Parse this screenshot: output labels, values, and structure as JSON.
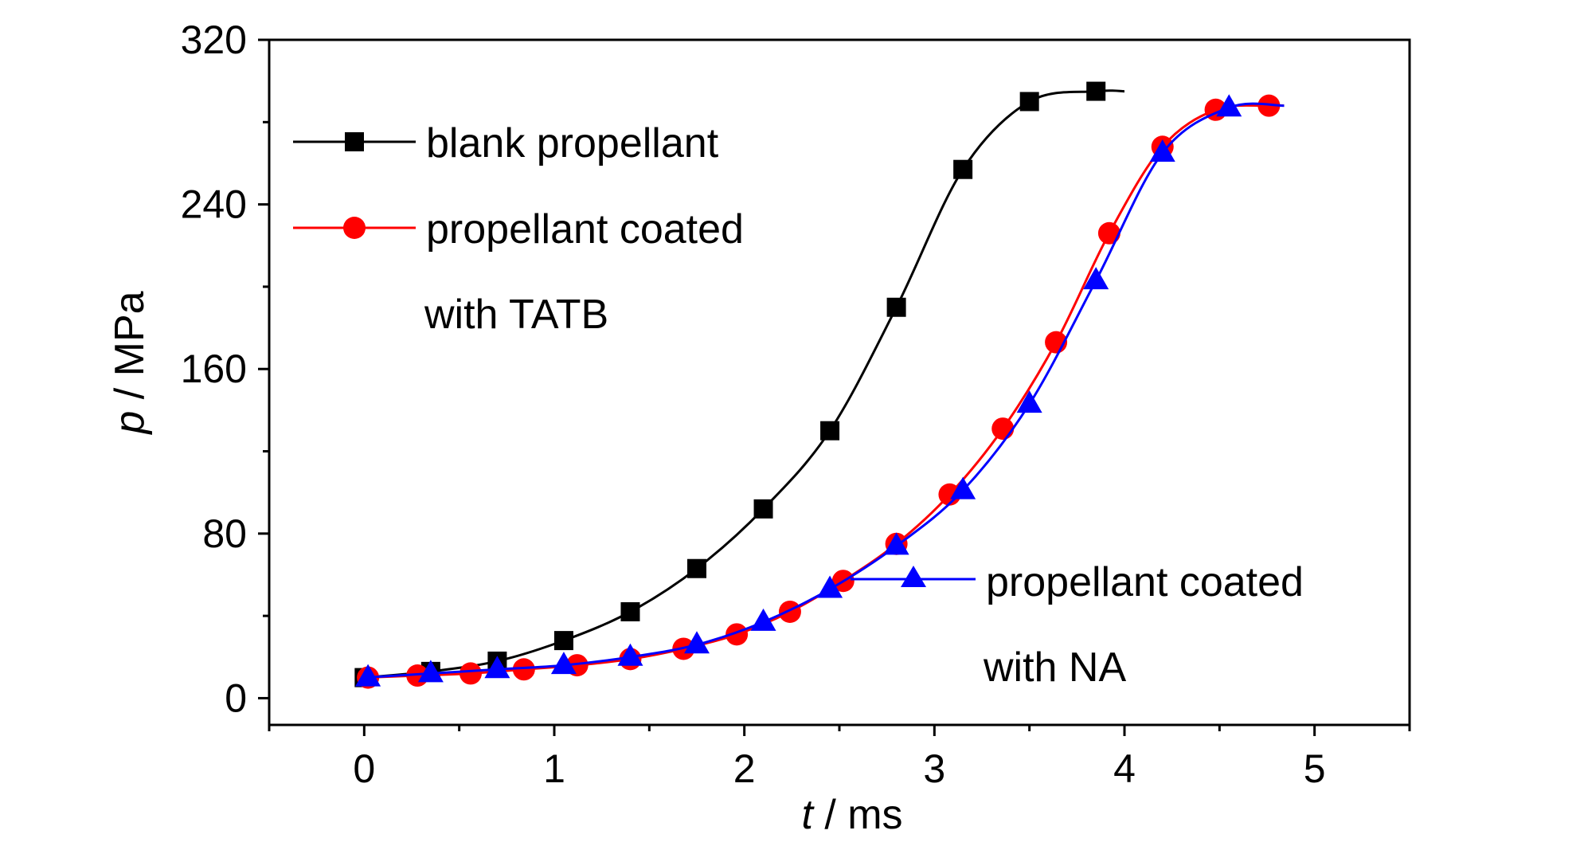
{
  "chart_data": {
    "type": "line",
    "xlabel_var": "t",
    "xlabel_unit": " / ms",
    "ylabel_var": "p",
    "ylabel_unit": " / MPa",
    "xlim": [
      -0.5,
      5.5
    ],
    "ylim": [
      -13,
      320
    ],
    "xticks": [
      0,
      1,
      2,
      3,
      4,
      5
    ],
    "yticks": [
      0,
      80,
      160,
      240,
      320
    ],
    "x_minor_step": 0.5,
    "y_minor_step": 40,
    "grid": false,
    "series": [
      {
        "name": "blank propellant",
        "color": "#000000",
        "marker": "square",
        "curve_x": [
          0,
          0.35,
          0.7,
          1.05,
          1.4,
          1.75,
          2.1,
          2.45,
          2.8,
          3.15,
          3.5,
          3.85,
          4.0
        ],
        "curve_y": [
          10,
          13,
          18,
          28,
          42,
          63,
          92,
          130,
          190,
          257,
          290,
          295,
          295
        ],
        "markers_x": [
          0,
          0.35,
          0.7,
          1.05,
          1.4,
          1.75,
          2.1,
          2.45,
          2.8,
          3.15,
          3.5,
          3.85
        ],
        "markers_y": [
          10,
          13,
          18,
          28,
          42,
          63,
          92,
          130,
          190,
          257,
          290,
          295
        ]
      },
      {
        "name_line1": "propellant coated",
        "name_line2": "with TATB",
        "color": "#ff0000",
        "marker": "circle",
        "curve_x": [
          0,
          0.28,
          0.56,
          0.84,
          1.12,
          1.4,
          1.68,
          1.96,
          2.24,
          2.52,
          2.8,
          3.08,
          3.36,
          3.64,
          3.92,
          4.2,
          4.48,
          4.76,
          4.84
        ],
        "curve_y": [
          10,
          11,
          12,
          14,
          16,
          19,
          24,
          31,
          42,
          57,
          75,
          99,
          131,
          173,
          226,
          268,
          286,
          288,
          288
        ],
        "markers_x": [
          0.02,
          0.28,
          0.56,
          0.84,
          1.12,
          1.4,
          1.68,
          1.96,
          2.24,
          2.52,
          2.8,
          3.08,
          3.36,
          3.64,
          3.92,
          4.2,
          4.48,
          4.76
        ],
        "markers_y": [
          10,
          11,
          12,
          14,
          16,
          19,
          24,
          31,
          42,
          57,
          75,
          99,
          131,
          173,
          226,
          268,
          286,
          288
        ]
      },
      {
        "name_line1": "propellant  coated",
        "name_line2": "with NA",
        "color": "#0000ff",
        "marker": "triangle",
        "curve_x": [
          0,
          0.35,
          0.7,
          1.05,
          1.4,
          1.75,
          2.1,
          2.45,
          2.8,
          3.15,
          3.5,
          3.85,
          4.2,
          4.55,
          4.84
        ],
        "curve_y": [
          10,
          12,
          14,
          16,
          20,
          26,
          37,
          53,
          74,
          101,
          143,
          203,
          265,
          287,
          288
        ],
        "markers_x": [
          0.02,
          0.35,
          0.7,
          1.05,
          1.4,
          1.75,
          2.1,
          2.45,
          2.8,
          3.15,
          3.5,
          3.85,
          4.2,
          4.55
        ],
        "markers_y": [
          10,
          12,
          14,
          16,
          20,
          26,
          37,
          53,
          74,
          101,
          143,
          203,
          265,
          287
        ]
      }
    ]
  }
}
